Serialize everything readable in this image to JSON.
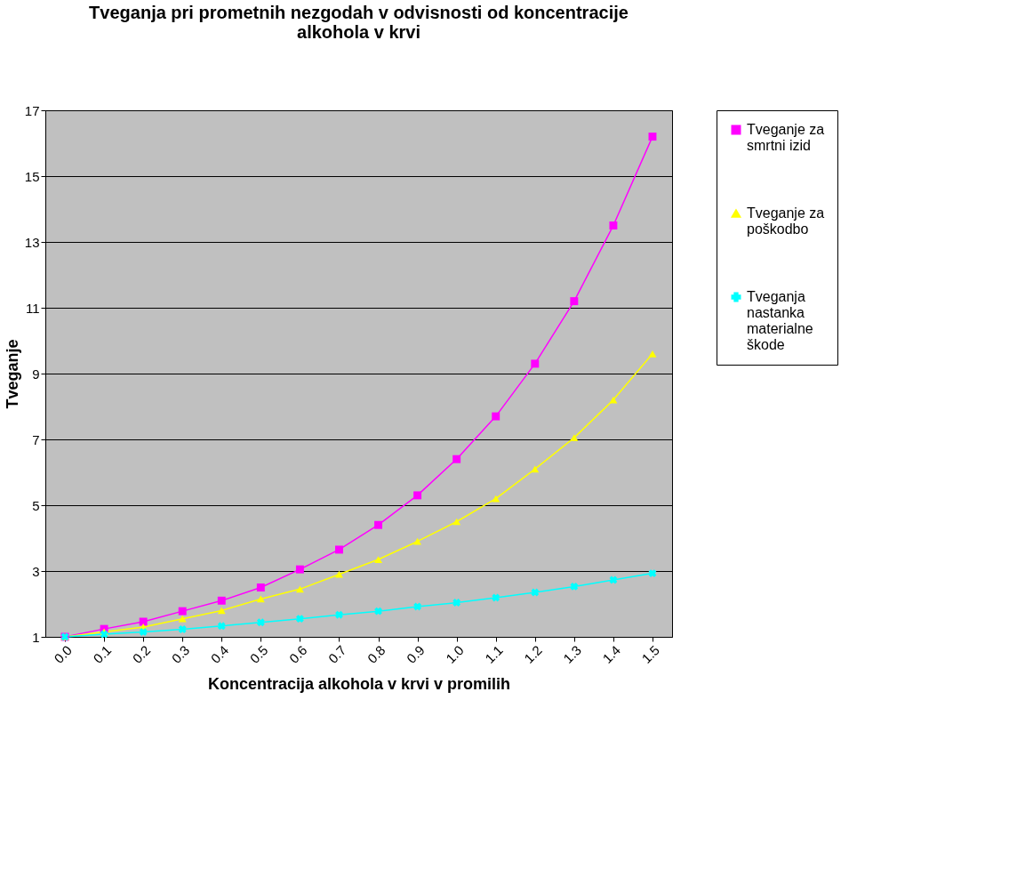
{
  "chart_data": {
    "type": "line",
    "title": "Tveganja pri prometnih nezgodah v odvisnosti od koncentracije alkohola v krvi",
    "xlabel": "Koncentracija alkohola v krvi v promilih",
    "ylabel": "Tveganje",
    "categories": [
      "0.0",
      "0.1",
      "0.2",
      "0.3",
      "0.4",
      "0.5",
      "0.6",
      "0.7",
      "0.8",
      "0.9",
      "1.0",
      "1.1",
      "1.2",
      "1.3",
      "1.4",
      "1.5"
    ],
    "series": [
      {
        "name": "Tveganje za smrtni izid",
        "color": "#ff00ff",
        "marker": "square",
        "values": [
          1.0,
          1.24,
          1.46,
          1.78,
          2.1,
          2.5,
          3.05,
          3.65,
          4.4,
          5.3,
          6.4,
          7.7,
          9.3,
          11.2,
          13.5,
          16.2
        ]
      },
      {
        "name": "Tveganje za poškodbo",
        "color": "#ffff00",
        "marker": "triangle",
        "values": [
          1.0,
          1.15,
          1.3,
          1.55,
          1.8,
          2.15,
          2.45,
          2.9,
          3.35,
          3.9,
          4.5,
          5.2,
          6.1,
          7.05,
          8.2,
          9.6
        ]
      },
      {
        "name": "Tveganja nastanka materialne škode",
        "color": "#00ffff",
        "marker": "cross",
        "values": [
          1.0,
          1.08,
          1.15,
          1.23,
          1.33,
          1.44,
          1.55,
          1.67,
          1.78,
          1.92,
          2.04,
          2.19,
          2.35,
          2.53,
          2.73,
          2.93
        ]
      }
    ],
    "ylim": [
      1,
      17
    ],
    "yticks": [
      1,
      3,
      5,
      7,
      9,
      11,
      13,
      15,
      17
    ],
    "grid": "y",
    "legend": "right"
  }
}
